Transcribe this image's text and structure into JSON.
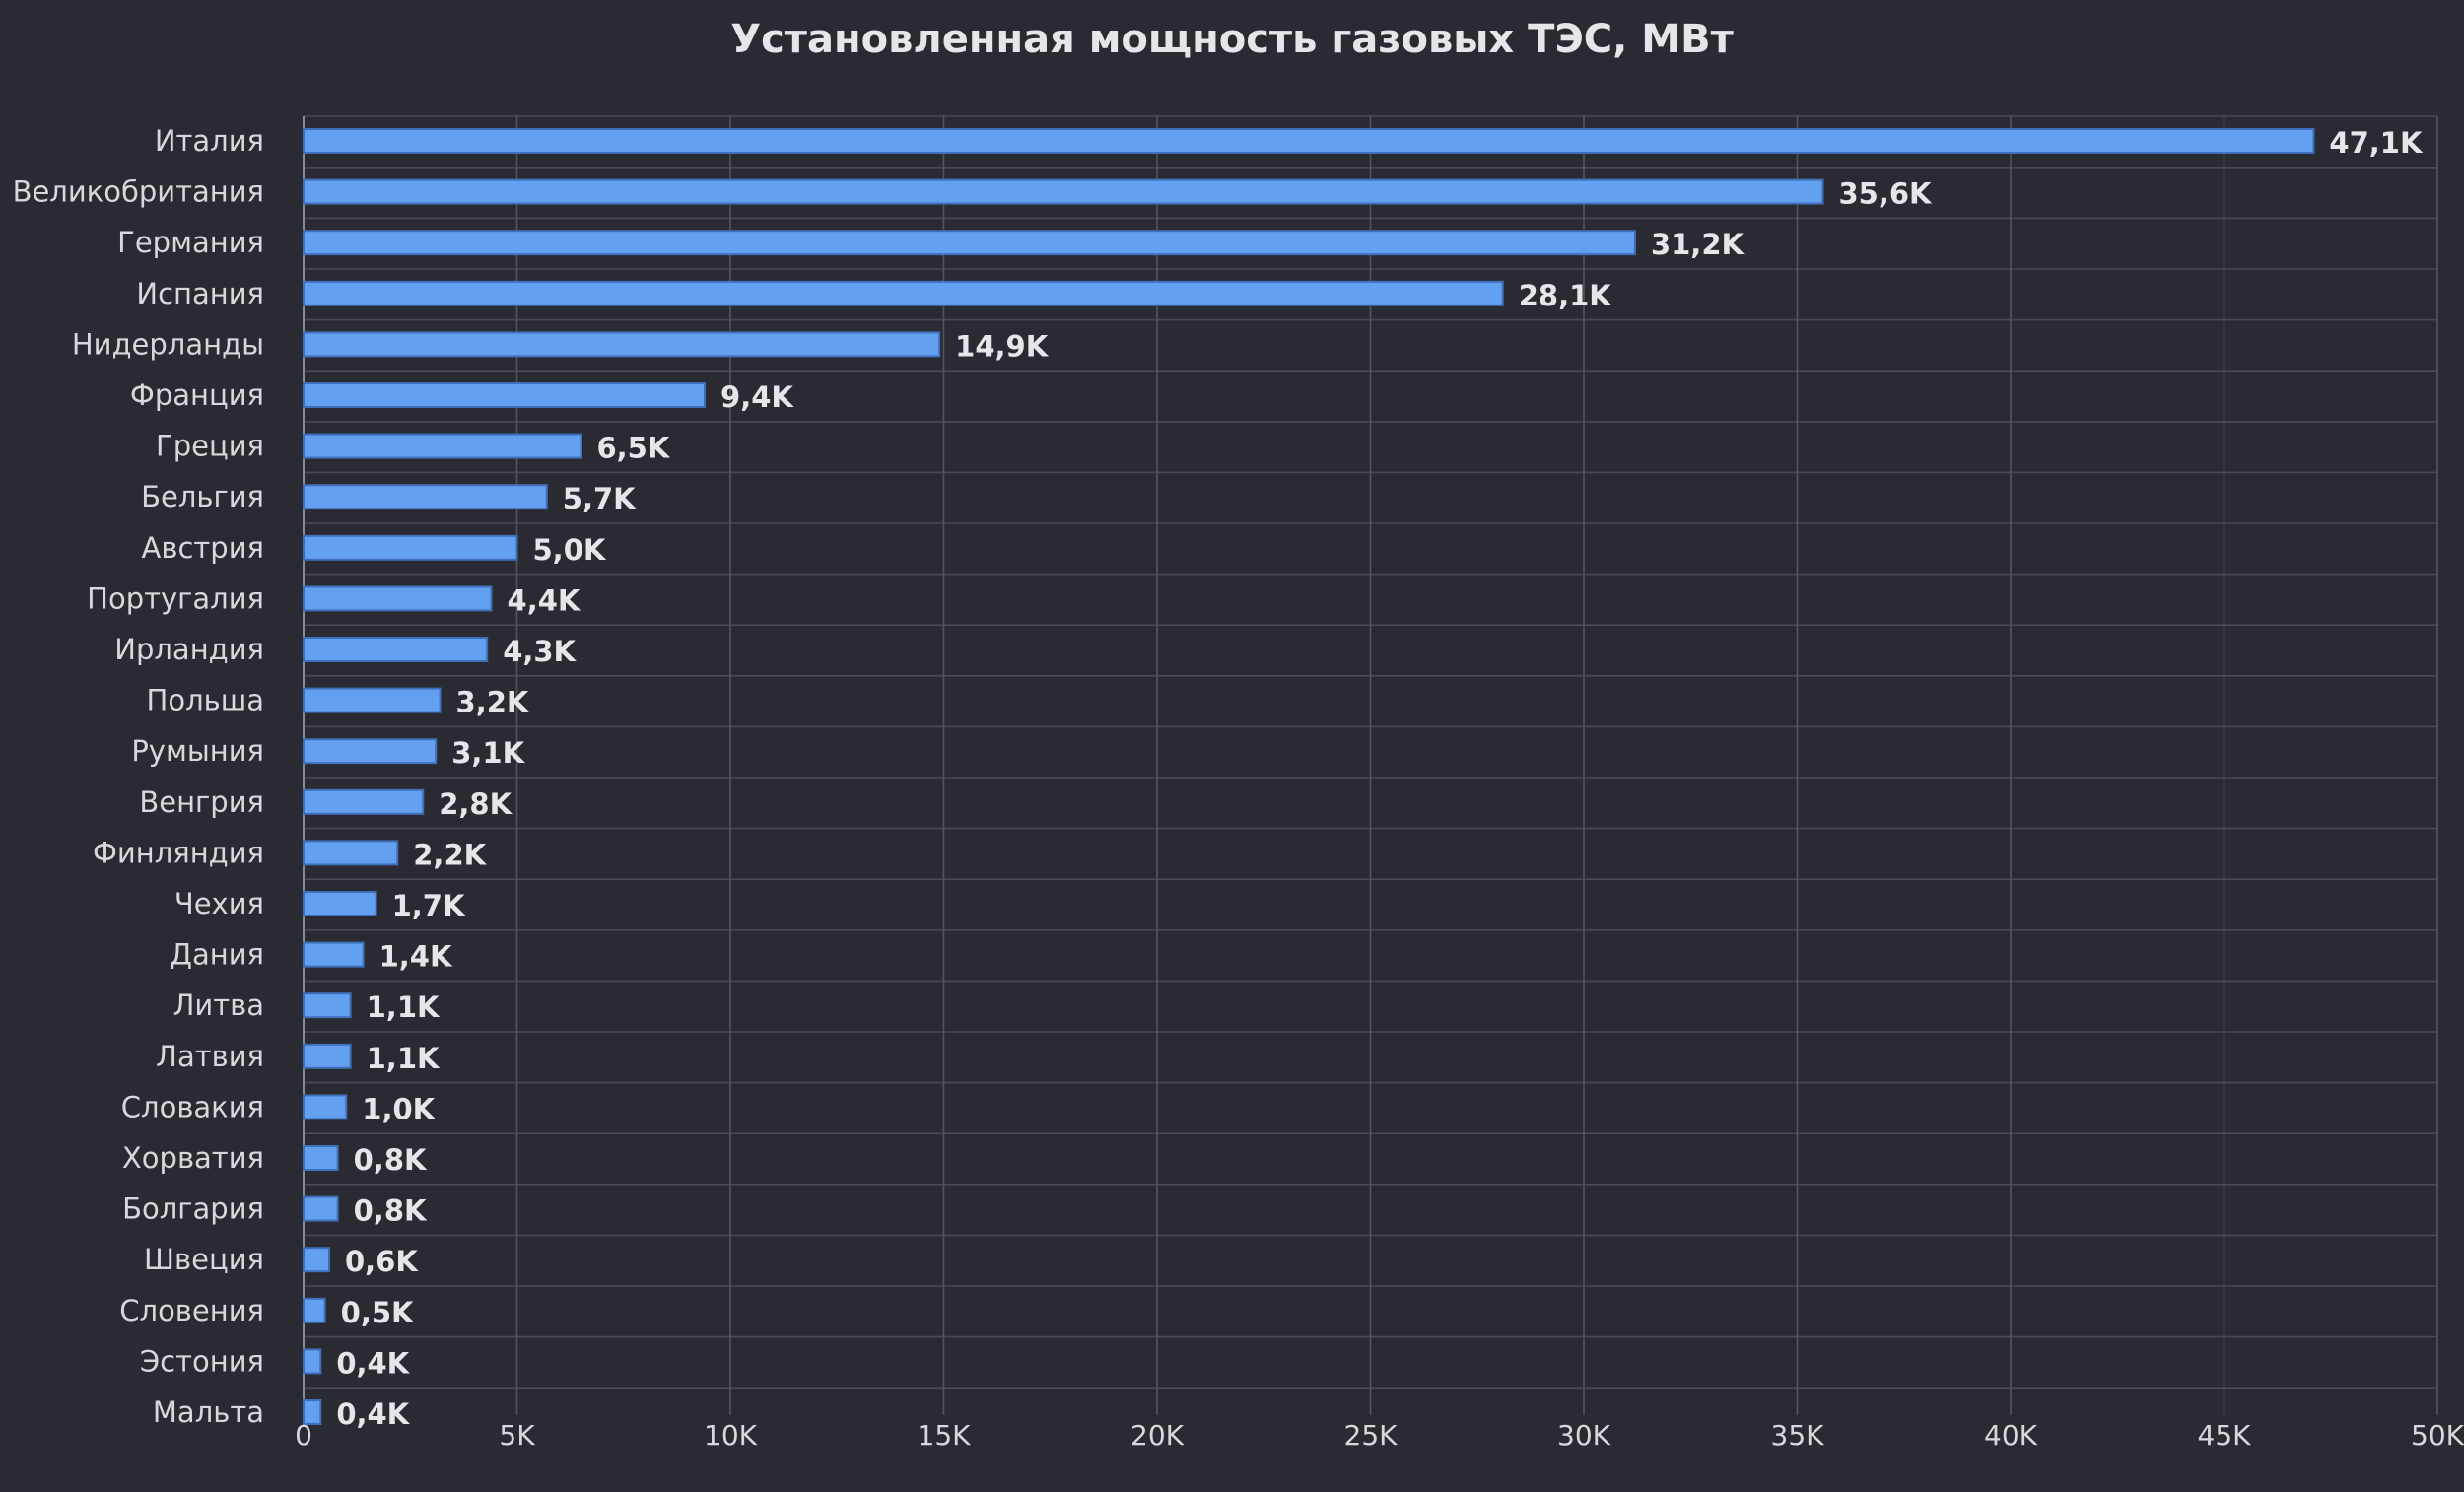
{
  "chart_data": {
    "type": "bar",
    "orientation": "horizontal",
    "title": "Установленная мощность газовых ТЭС, МВт",
    "xlabel": "",
    "ylabel": "",
    "xlim": [
      0,
      50000
    ],
    "x_ticks": [
      0,
      5000,
      10000,
      15000,
      20000,
      25000,
      30000,
      35000,
      40000,
      45000,
      50000
    ],
    "x_tick_labels": [
      "0",
      "5K",
      "10K",
      "15K",
      "20K",
      "25K",
      "30K",
      "35K",
      "40K",
      "45K",
      "50K"
    ],
    "grid": true,
    "legend": "none",
    "colors": {
      "background": "#2a2a32",
      "bar": "#64a0f0",
      "bar_border": "#3e6fb8",
      "text": "#e6e6ea"
    },
    "categories": [
      "Италия",
      "Великобритания",
      "Германия",
      "Испания",
      "Нидерланды",
      "Франция",
      "Греция",
      "Бельгия",
      "Австрия",
      "Португалия",
      "Ирландия",
      "Польша",
      "Румыния",
      "Венгрия",
      "Финляндия",
      "Чехия",
      "Дания",
      "Литва",
      "Латвия",
      "Словакия",
      "Хорватия",
      "Болгария",
      "Швеция",
      "Словения",
      "Эстония",
      "Мальта"
    ],
    "values": [
      47100,
      35600,
      31200,
      28100,
      14900,
      9400,
      6500,
      5700,
      5000,
      4400,
      4300,
      3200,
      3100,
      2800,
      2200,
      1700,
      1400,
      1100,
      1100,
      1000,
      800,
      800,
      600,
      500,
      400,
      400
    ],
    "value_labels": [
      "47,1K",
      "35,6K",
      "31,2K",
      "28,1K",
      "14,9K",
      "9,4K",
      "6,5K",
      "5,7K",
      "5,0K",
      "4,4K",
      "4,3K",
      "3,2K",
      "3,1K",
      "2,8K",
      "2,2K",
      "1,7K",
      "1,4K",
      "1,1K",
      "1,1K",
      "1,0K",
      "0,8K",
      "0,8K",
      "0,6K",
      "0,5K",
      "0,4K",
      "0,4K"
    ]
  }
}
